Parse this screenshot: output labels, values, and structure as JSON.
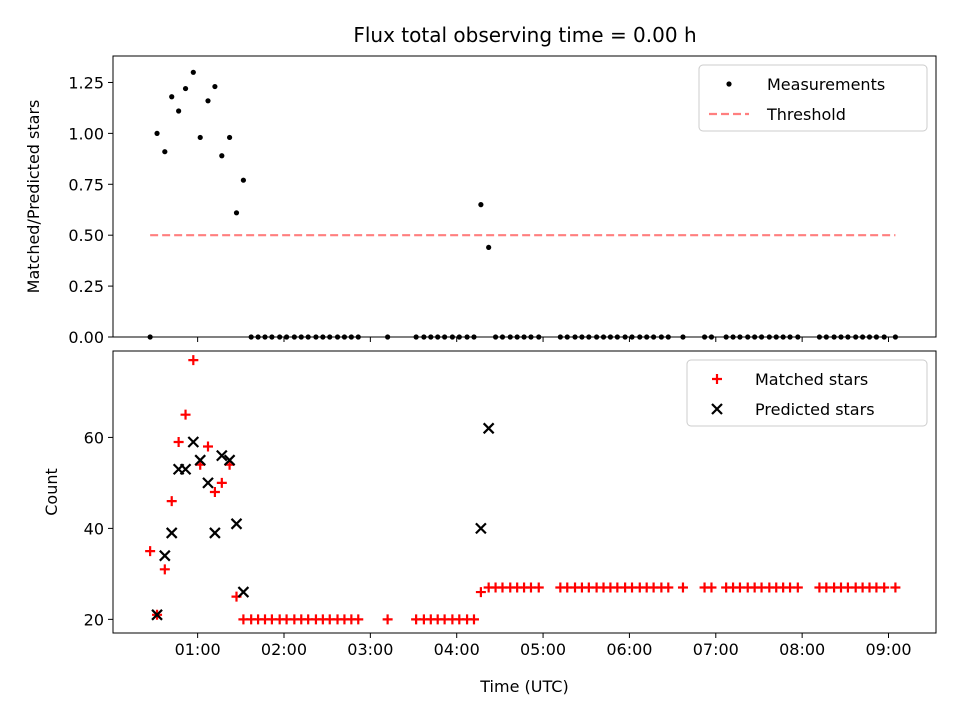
{
  "title": "Flux total observing time = 0.00 h",
  "chart_data": [
    {
      "type": "scatter",
      "panel": "top",
      "ylabel": "Matched/Predicted stars",
      "xlabel": "",
      "x_unit": "hours UTC",
      "xlim": [
        0.02,
        9.55
      ],
      "ylim": [
        0,
        1.38
      ],
      "yticks": [
        0,
        0.25,
        0.5,
        0.75,
        1.0,
        1.25
      ],
      "ytick_labels": [
        "0.00",
        "0.25",
        "0.50",
        "0.75",
        "1.00",
        "1.25"
      ],
      "legend_position": "top-right",
      "series": [
        {
          "name": "Measurements",
          "color": "#000000",
          "marker": "dot",
          "x": [
            0.45,
            0.53,
            0.62,
            0.7,
            0.78,
            0.86,
            0.95,
            1.03,
            1.12,
            1.2,
            1.28,
            1.37,
            1.45,
            1.53,
            4.28,
            4.37,
            1.62,
            1.7,
            1.78,
            1.86,
            1.95,
            2.03,
            2.12,
            2.2,
            2.28,
            2.37,
            2.45,
            2.53,
            2.62,
            2.7,
            2.78,
            2.86,
            3.2,
            3.53,
            3.62,
            3.7,
            3.78,
            3.86,
            3.95,
            4.03,
            4.12,
            4.2,
            4.45,
            4.53,
            4.62,
            4.7,
            4.78,
            4.86,
            4.95,
            5.2,
            5.28,
            5.37,
            5.45,
            5.53,
            5.62,
            5.7,
            5.78,
            5.86,
            5.95,
            6.03,
            6.12,
            6.2,
            6.28,
            6.37,
            6.45,
            6.62,
            6.87,
            6.95,
            7.12,
            7.2,
            7.28,
            7.37,
            7.45,
            7.53,
            7.62,
            7.7,
            7.78,
            7.86,
            7.95,
            8.2,
            8.28,
            8.37,
            8.45,
            8.53,
            8.62,
            8.7,
            8.78,
            8.86,
            8.95,
            9.08
          ],
          "y": [
            0.0,
            1.0,
            0.91,
            1.18,
            1.11,
            1.22,
            1.3,
            0.98,
            1.16,
            1.23,
            0.89,
            0.98,
            0.61,
            0.77,
            0.65,
            0.44,
            0,
            0,
            0,
            0,
            0,
            0,
            0,
            0,
            0,
            0,
            0,
            0,
            0,
            0,
            0,
            0,
            0,
            0,
            0,
            0,
            0,
            0,
            0,
            0,
            0,
            0,
            0,
            0,
            0,
            0,
            0,
            0,
            0,
            0,
            0,
            0,
            0,
            0,
            0,
            0,
            0,
            0,
            0,
            0,
            0,
            0,
            0,
            0,
            0,
            0,
            0,
            0,
            0,
            0,
            0,
            0,
            0,
            0,
            0,
            0,
            0,
            0,
            0,
            0,
            0,
            0,
            0,
            0,
            0,
            0,
            0,
            0,
            0,
            0
          ]
        },
        {
          "name": "Threshold",
          "color": "#ff7f7f",
          "style": "dashed",
          "x": [
            0.45,
            9.08
          ],
          "y": [
            0.5,
            0.5
          ]
        }
      ]
    },
    {
      "type": "scatter",
      "panel": "bottom",
      "ylabel": "Count",
      "xlabel": "Time (UTC)",
      "x_unit": "hours UTC",
      "xlim": [
        0.02,
        9.55
      ],
      "ylim": [
        17,
        79
      ],
      "yticks": [
        20,
        40,
        60
      ],
      "ytick_labels": [
        "20",
        "40",
        "60"
      ],
      "xticks": [
        1,
        2,
        3,
        4,
        5,
        6,
        7,
        8,
        9
      ],
      "xtick_labels": [
        "01:00",
        "02:00",
        "03:00",
        "04:00",
        "05:00",
        "06:00",
        "07:00",
        "08:00",
        "09:00"
      ],
      "legend_position": "top-right",
      "series": [
        {
          "name": "Matched stars",
          "color": "#ff0000",
          "marker": "plus",
          "x": [
            0.45,
            0.53,
            0.62,
            0.7,
            0.78,
            0.86,
            0.95,
            1.03,
            1.12,
            1.2,
            1.28,
            1.37,
            1.45,
            4.28,
            4.37,
            1.53,
            1.62,
            1.7,
            1.78,
            1.86,
            1.95,
            2.03,
            2.12,
            2.2,
            2.28,
            2.37,
            2.45,
            2.53,
            2.62,
            2.7,
            2.78,
            2.86,
            3.2,
            3.53,
            3.62,
            3.7,
            3.78,
            3.86,
            3.95,
            4.03,
            4.12,
            4.2,
            4.45,
            4.53,
            4.62,
            4.7,
            4.78,
            4.86,
            4.95,
            5.2,
            5.28,
            5.37,
            5.45,
            5.53,
            5.62,
            5.7,
            5.78,
            5.86,
            5.95,
            6.03,
            6.12,
            6.2,
            6.28,
            6.37,
            6.45,
            6.62,
            6.87,
            6.95,
            7.12,
            7.2,
            7.28,
            7.37,
            7.45,
            7.53,
            7.62,
            7.7,
            7.78,
            7.86,
            7.95,
            8.2,
            8.28,
            8.37,
            8.45,
            8.53,
            8.62,
            8.7,
            8.78,
            8.86,
            8.95,
            9.08
          ],
          "y": [
            35,
            21,
            31,
            46,
            59,
            65,
            77,
            54,
            58,
            48,
            50,
            54,
            25,
            26,
            27,
            20,
            20,
            20,
            20,
            20,
            20,
            20,
            20,
            20,
            20,
            20,
            20,
            20,
            20,
            20,
            20,
            20,
            20,
            20,
            20,
            20,
            20,
            20,
            20,
            20,
            20,
            20,
            27,
            27,
            27,
            27,
            27,
            27,
            27,
            27,
            27,
            27,
            27,
            27,
            27,
            27,
            27,
            27,
            27,
            27,
            27,
            27,
            27,
            27,
            27,
            27,
            27,
            27,
            27,
            27,
            27,
            27,
            27,
            27,
            27,
            27,
            27,
            27,
            27,
            27,
            27,
            27,
            27,
            27,
            27,
            27,
            27,
            27,
            27,
            27
          ]
        },
        {
          "name": "Predicted stars",
          "color": "#000000",
          "marker": "x",
          "x": [
            0.53,
            0.62,
            0.7,
            0.78,
            0.86,
            0.95,
            1.03,
            1.12,
            1.2,
            1.28,
            1.37,
            1.45,
            1.53,
            4.28,
            4.37
          ],
          "y": [
            21,
            34,
            39,
            53,
            53,
            59,
            55,
            50,
            39,
            56,
            55,
            41,
            26,
            40,
            62
          ]
        }
      ]
    }
  ]
}
